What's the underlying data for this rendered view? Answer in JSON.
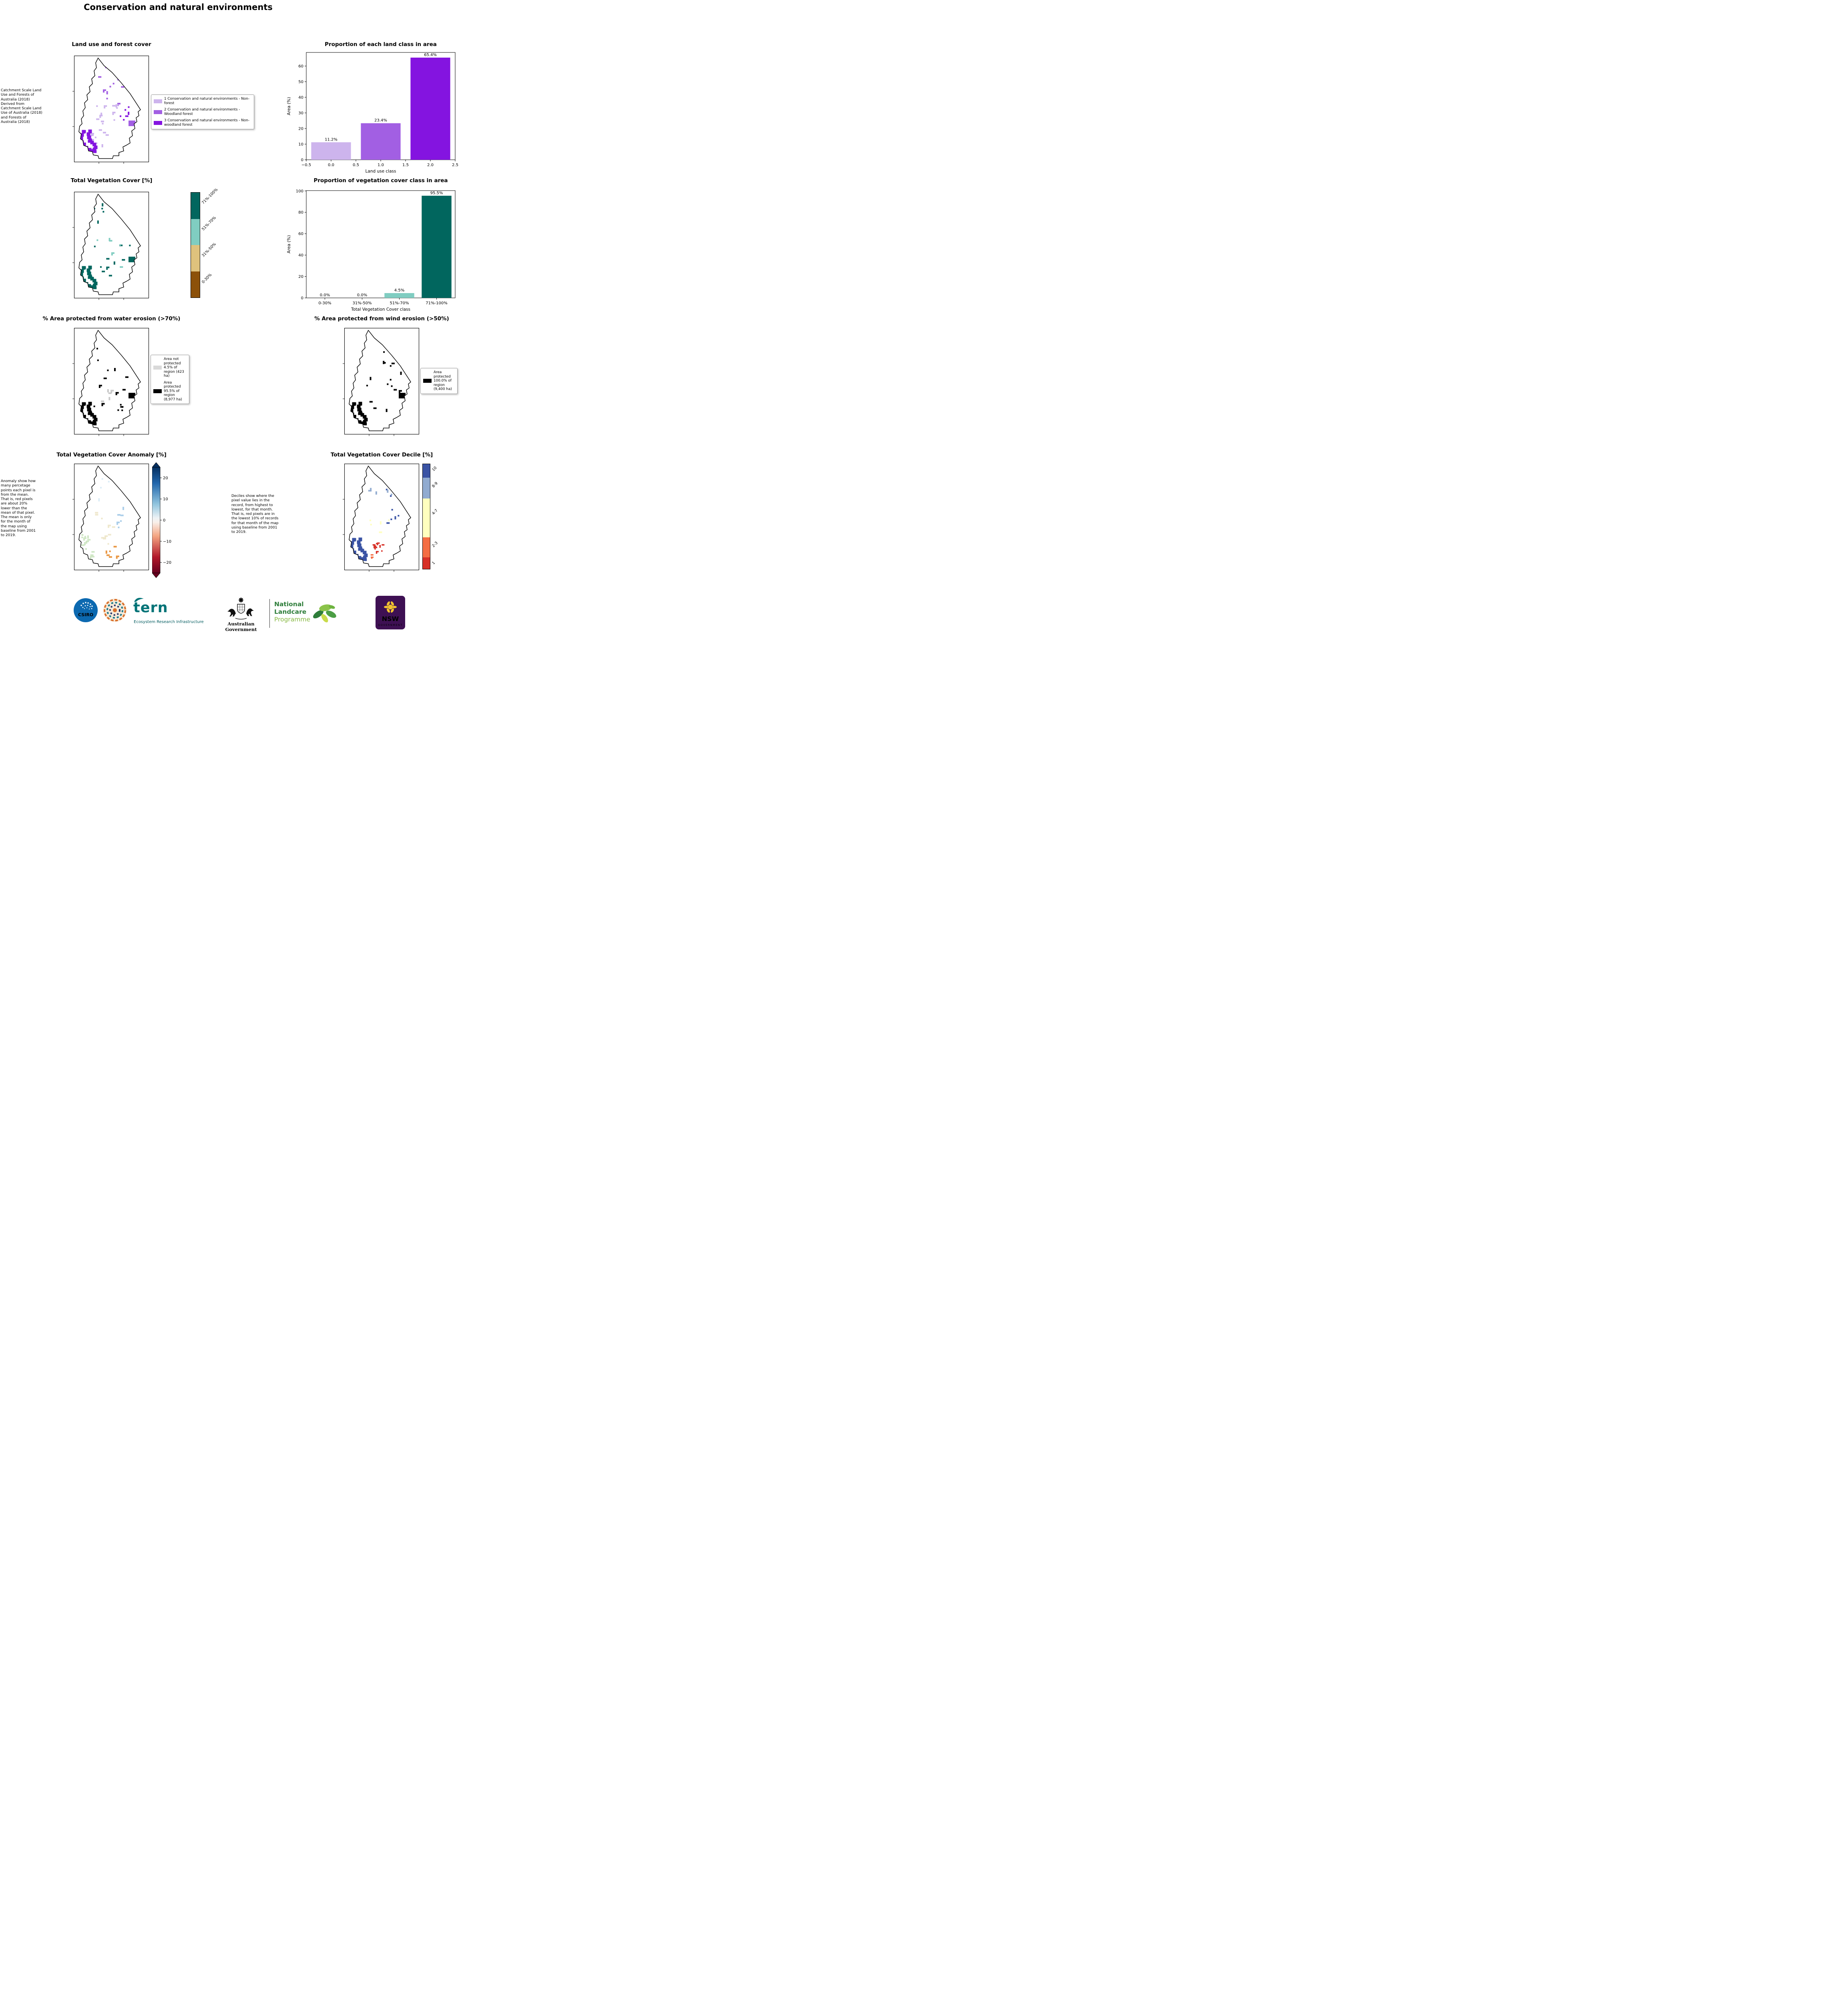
{
  "page": {
    "title": "Conservation and natural environments"
  },
  "panels": {
    "landuse": {
      "title": "Land use and forest cover",
      "note": "Catchment Scale Land Use and Forests of Australia (2018) Derived from Catchment Scale Land Use of Australia (2018) and Forests of Australia (2018)",
      "legend": [
        {
          "label": "1 Conservation and natural environments - Non-forest",
          "color": "#cdb4ed"
        },
        {
          "label": "2 Conservation and natural environments - Woodland forest",
          "color": "#a25fe3"
        },
        {
          "label": "3 Conservation and natural environments - Non-woodland forest",
          "color": "#8414e0"
        }
      ]
    },
    "vegcover": {
      "title": "Total Vegetation Cover [%]",
      "colorbar": {
        "labels": [
          "71%-100%",
          "51%-70%",
          "31%-50%",
          "0-30%"
        ],
        "colors": [
          "#01665e",
          "#80cdc1",
          "#dfc27d",
          "#8c510a"
        ],
        "heights": [
          0.25,
          0.25,
          0.25,
          0.25
        ]
      }
    },
    "water": {
      "title": "% Area protected from water erosion (>70%)",
      "legend": [
        {
          "label": "Area not protected 4.5% of region (423 ha)",
          "color": "#d9d9d9"
        },
        {
          "label": "Area protected 95.5% of region (8,977 ha)",
          "color": "#000000"
        }
      ]
    },
    "wind": {
      "title": "% Area protected from wind erosion (>50%)",
      "legend": [
        {
          "label": "Area protected 100.0% of region (9,400 ha)",
          "color": "#000000"
        }
      ]
    },
    "anomaly": {
      "title": "Total Vegetation Cover Anomaly [%]",
      "note": "Anomaly show how many percetage points each pixel is from the mean. That is, red pixels are about 20% lower than the mean of that pixel. The mean is only for the month of the map using baseline from 2001 to 2019.",
      "colorbar_ticks": [
        {
          "v": 20,
          "label": "20"
        },
        {
          "v": 10,
          "label": "10"
        },
        {
          "v": 0,
          "label": "0"
        },
        {
          "v": -10,
          "label": "−10"
        },
        {
          "v": -20,
          "label": "−20"
        }
      ]
    },
    "decile": {
      "title": "Total Vegetation Cover Decile [%]",
      "note": "Deciles show where the pixel value lies in the record, from highest to lowest, for that month. That is, red pixels are in the lowest 10% of records for that month of the map using baseline from 2001 to 2019.",
      "colorbar": {
        "labels": [
          "10",
          "8-9",
          "4-7",
          "2-3",
          "1"
        ],
        "colors": [
          "#3a53a4",
          "#91abd0",
          "#ffffbf",
          "#f46d43",
          "#d73027"
        ],
        "heights": [
          0.13,
          0.2,
          0.37,
          0.19,
          0.11
        ]
      }
    }
  },
  "chart_data": [
    {
      "type": "bar",
      "title": "Proportion of each land class in area",
      "xlabel": "Land use class",
      "ylabel": "Area (%)",
      "x": [
        0,
        1,
        2
      ],
      "values": [
        11.2,
        23.4,
        65.4
      ],
      "labels": [
        "11.2%",
        "23.4%",
        "65.4%"
      ],
      "bar_colors": [
        "#cdb4ed",
        "#a25fe3",
        "#8414e0"
      ],
      "xlim": [
        -0.5,
        2.5
      ],
      "xticks": [
        -0.5,
        0,
        0.5,
        1,
        1.5,
        2,
        2.5
      ],
      "xtick_labels": [
        "−0.5",
        "0.0",
        "0.5",
        "1.0",
        "1.5",
        "2.0",
        "2.5"
      ],
      "ylim": [
        0,
        68.7
      ],
      "yticks": [
        0,
        10,
        20,
        30,
        40,
        50,
        60
      ]
    },
    {
      "type": "bar",
      "title": "Proportion of vegetation cover class in area",
      "xlabel": "Total Vegetation Cover class",
      "ylabel": "Area (%)",
      "categories": [
        "0-30%",
        "31%-50%",
        "51%-70%",
        "71%-100%"
      ],
      "values": [
        0,
        0,
        4.5,
        95.5
      ],
      "labels": [
        "0.0%",
        "0.0%",
        "4.5%",
        "95.5%"
      ],
      "bar_colors": [
        "#8c510a",
        "#dfc27d",
        "#80cdc1",
        "#01665e"
      ],
      "ylim": [
        0,
        100.3
      ],
      "yticks": [
        0,
        20,
        40,
        60,
        80,
        100
      ]
    }
  ],
  "maps": {
    "landuse": {
      "clusters": [
        {
          "kind": "scatter",
          "color": "#a25fe3",
          "region": [
            45,
            25,
            85,
            95
          ],
          "n": 12,
          "s": 4,
          "seed": 11
        },
        {
          "kind": "scatter",
          "color": "#cdb4ed",
          "region": [
            55,
            120,
            65,
            85
          ],
          "n": 14,
          "s": 4,
          "seed": 22
        },
        {
          "kind": "scatter",
          "color": "#8414e0",
          "region": [
            100,
            55,
            62,
            115
          ],
          "n": 10,
          "s": 4,
          "seed": 33
        },
        {
          "kind": "scatter",
          "color": "#cdb4ed",
          "region": [
            20,
            175,
            50,
            55
          ],
          "n": 9,
          "s": 4,
          "seed": 44
        },
        {
          "kind": "snake",
          "color": "#8414e0"
        },
        {
          "kind": "block",
          "color": "#a25fe3"
        }
      ]
    },
    "veg": {
      "clusters": [
        {
          "kind": "scatter",
          "color": "#01665e",
          "region": [
            40,
            25,
            115,
            185
          ],
          "n": 22,
          "s": 4,
          "seed": 5
        },
        {
          "kind": "scatter",
          "color": "#80cdc1",
          "region": [
            55,
            115,
            60,
            75
          ],
          "n": 6,
          "s": 4,
          "seed": 6
        },
        {
          "kind": "snake",
          "color": "#01665e"
        },
        {
          "kind": "block",
          "color": "#01665e"
        }
      ]
    },
    "water": {
      "clusters": [
        {
          "kind": "scatter",
          "color": "#000000",
          "region": [
            40,
            25,
            115,
            185
          ],
          "n": 20,
          "s": 4,
          "seed": 7
        },
        {
          "kind": "scatter",
          "color": "#c8c8c8",
          "region": [
            60,
            150,
            45,
            50
          ],
          "n": 5,
          "s": 4,
          "seed": 8
        },
        {
          "kind": "snake",
          "color": "#000000"
        },
        {
          "kind": "block",
          "color": "#000000"
        }
      ]
    },
    "wind": {
      "clusters": [
        {
          "kind": "scatter",
          "color": "#000000",
          "region": [
            40,
            25,
            115,
            185
          ],
          "n": 18,
          "s": 4,
          "seed": 9
        },
        {
          "kind": "snake",
          "color": "#000000"
        },
        {
          "kind": "block",
          "color": "#000000"
        }
      ]
    },
    "anomaly": {
      "clusters": [
        {
          "kind": "scatter",
          "color": "#cfe6c4",
          "region": [
            10,
            175,
            55,
            70
          ],
          "n": 20,
          "s": 4,
          "seed": 12
        },
        {
          "kind": "scatter",
          "color": "#efe8cd",
          "region": [
            50,
            120,
            60,
            90
          ],
          "n": 10,
          "s": 4,
          "seed": 13
        },
        {
          "kind": "scatter",
          "color": "#e9953f",
          "region": [
            72,
            205,
            35,
            28
          ],
          "n": 6,
          "s": 4,
          "seed": 14
        },
        {
          "kind": "scatter",
          "color": "#a9cde9",
          "region": [
            105,
            105,
            45,
            55
          ],
          "n": 6,
          "s": 4,
          "seed": 15
        },
        {
          "kind": "scatter",
          "color": "#dcedf7",
          "region": [
            50,
            35,
            55,
            55
          ],
          "n": 4,
          "s": 4,
          "seed": 16
        }
      ]
    },
    "decile": {
      "clusters": [
        {
          "kind": "scatter",
          "color": "#3a53a4",
          "region": [
            100,
            55,
            60,
            120
          ],
          "n": 8,
          "s": 4,
          "seed": 17
        },
        {
          "kind": "scatter",
          "color": "#91abd0",
          "region": [
            50,
            30,
            70,
            65
          ],
          "n": 5,
          "s": 4,
          "seed": 18
        },
        {
          "kind": "scatter",
          "color": "#ffffbf",
          "region": [
            60,
            120,
            50,
            60
          ],
          "n": 5,
          "s": 4,
          "seed": 19
        },
        {
          "kind": "scatter",
          "color": "#d73027",
          "region": [
            68,
            193,
            26,
            26
          ],
          "n": 9,
          "s": 3.5,
          "seed": 20
        },
        {
          "kind": "scatter",
          "color": "#f46d43",
          "region": [
            55,
            218,
            25,
            18
          ],
          "n": 3,
          "s": 3.5,
          "seed": 21
        },
        {
          "kind": "snake",
          "color": "#3a53a4"
        }
      ]
    }
  },
  "footer": {
    "csiro_label": "CSIRO",
    "tern_label": "tern",
    "tern_tagline": "Ecosystem Research Infrastructure",
    "aus_gov_label": "Australian Government",
    "landcare_lines": [
      "National",
      "Landcare",
      "Programme"
    ],
    "nsw_label": "NSW",
    "nsw_sub": "GOVERNMENT"
  }
}
